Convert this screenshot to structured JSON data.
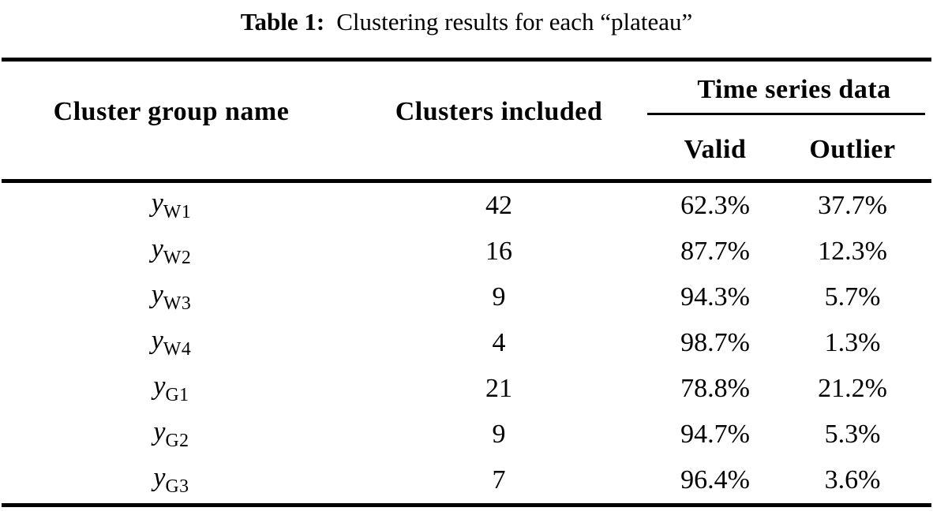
{
  "caption": {
    "label": "Table 1:",
    "text": "Clustering results for each “plateau”"
  },
  "table": {
    "group_header": "Time series data",
    "headers": {
      "cluster_group": "Cluster group name",
      "clusters_included": "Clusters included",
      "valid": "Valid",
      "outlier": "Outlier"
    },
    "rows": [
      {
        "var": "y",
        "sub": "W1",
        "clusters": "42",
        "valid": "62.3%",
        "outlier": "37.7%"
      },
      {
        "var": "y",
        "sub": "W2",
        "clusters": "16",
        "valid": "87.7%",
        "outlier": "12.3%"
      },
      {
        "var": "y",
        "sub": "W3",
        "clusters": "9",
        "valid": "94.3%",
        "outlier": "5.7%"
      },
      {
        "var": "y",
        "sub": "W4",
        "clusters": "4",
        "valid": "98.7%",
        "outlier": "1.3%"
      },
      {
        "var": "y",
        "sub": "G1",
        "clusters": "21",
        "valid": "78.8%",
        "outlier": "21.2%"
      },
      {
        "var": "y",
        "sub": "G2",
        "clusters": "9",
        "valid": "94.7%",
        "outlier": "5.3%"
      },
      {
        "var": "y",
        "sub": "G3",
        "clusters": "7",
        "valid": "96.4%",
        "outlier": "3.6%"
      }
    ]
  },
  "colors": {
    "text": "#000000",
    "background": "#ffffff",
    "rule": "#000000"
  }
}
